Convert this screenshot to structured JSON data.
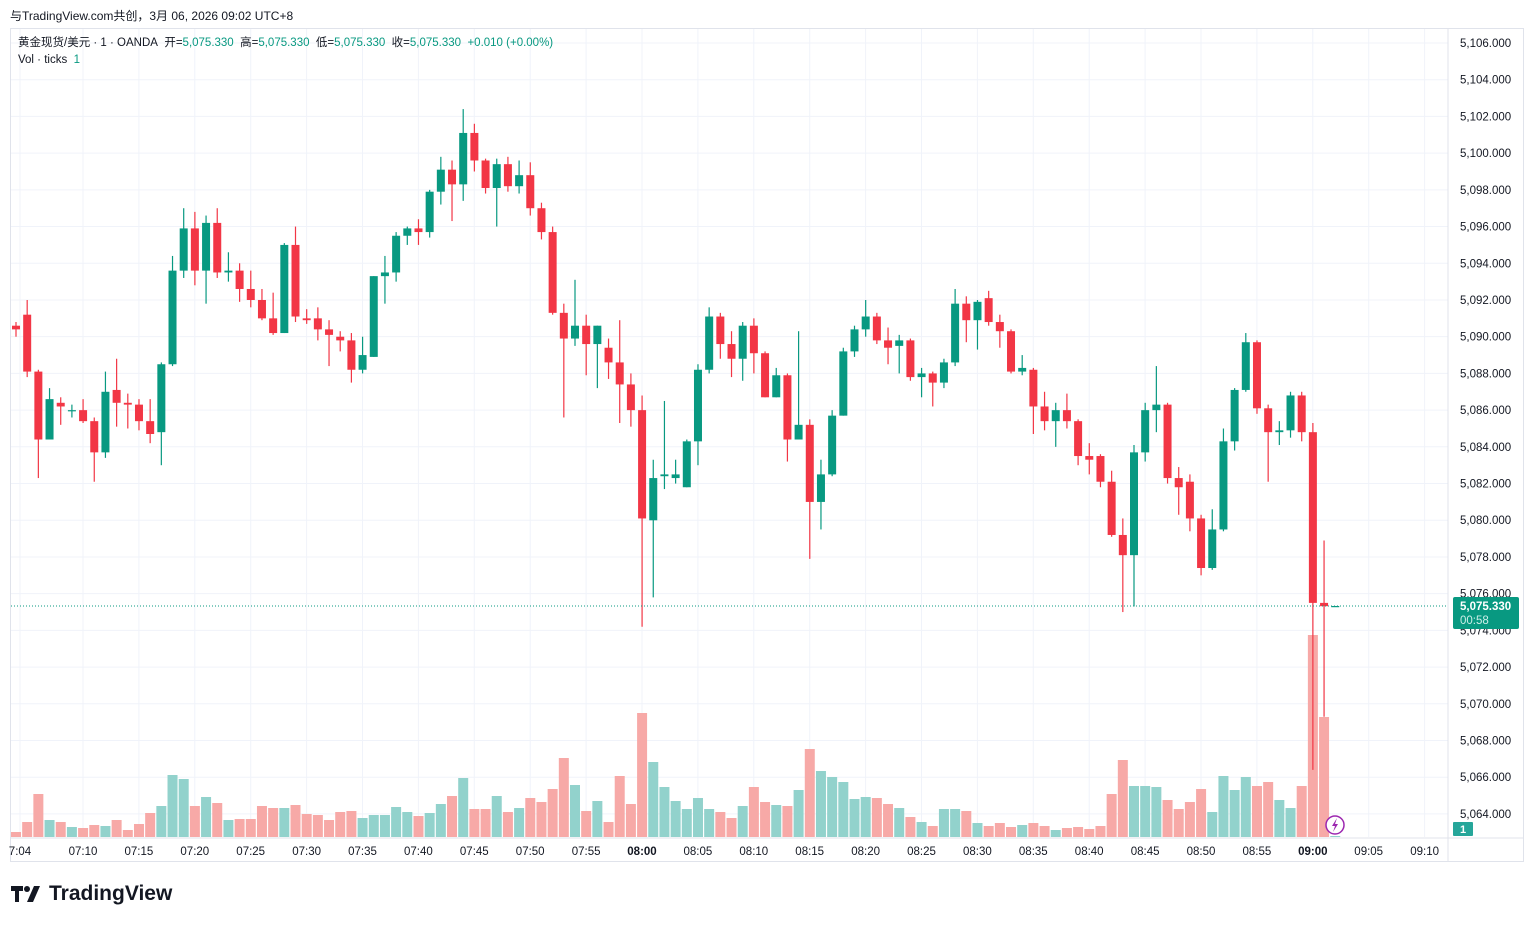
{
  "top_note": "与TradingView.com共创，3月 06, 2026 09:02 UTC+8",
  "legend": {
    "symbol": "黄金现货/美元 · 1 · OANDA",
    "open_label": "开=",
    "open": "5,075.330",
    "high_label": "高=",
    "high": "5,075.330",
    "low_label": "低=",
    "low": "5,075.330",
    "close_label": "收=",
    "close": "5,075.330",
    "change": "+0.010 (+0.00%)",
    "vol_label": "Vol · ticks",
    "vol_value": "1"
  },
  "price_badge": {
    "price": "5,075.330",
    "countdown": "00:58"
  },
  "volume_badge": "1",
  "logo_text": "TradingView",
  "colors": {
    "up": "#089981",
    "down": "#F23645",
    "vol_up": "#92D2CC",
    "vol_down": "#F7A9A7"
  },
  "chart_data": {
    "type": "candlestick",
    "interval": "1",
    "ylim": [
      5063.5,
      5106.5
    ],
    "price_ticks": [
      "5,106.000",
      "5,104.000",
      "5,102.000",
      "5,100.000",
      "5,098.000",
      "5,096.000",
      "5,094.000",
      "5,092.000",
      "5,090.000",
      "5,088.000",
      "5,086.000",
      "5,084.000",
      "5,082.000",
      "5,080.000",
      "5,078.000",
      "5,076.000",
      "5,074.000",
      "5,072.000",
      "5,070.000",
      "5,068.000",
      "5,066.000",
      "5,064.000"
    ],
    "time_ticks": [
      "7:04",
      "07:10",
      "07:15",
      "07:20",
      "07:25",
      "07:30",
      "07:35",
      "07:40",
      "07:45",
      "07:50",
      "07:55",
      "08:00",
      "08:05",
      "08:10",
      "08:15",
      "08:20",
      "08:25",
      "08:30",
      "08:35",
      "08:40",
      "08:45",
      "08:50",
      "08:55",
      "09:00",
      "09:05",
      "09:10"
    ],
    "columns": [
      "time",
      "open",
      "high",
      "low",
      "close",
      "volume"
    ],
    "candles": [
      [
        "07:04",
        5090.6,
        5090.8,
        5090.0,
        5090.4,
        5
      ],
      [
        "07:05",
        5091.2,
        5092.0,
        5087.8,
        5088.1,
        15
      ],
      [
        "07:06",
        5088.1,
        5088.2,
        5082.3,
        5084.4,
        43
      ],
      [
        "07:07",
        5084.4,
        5087.2,
        5084.4,
        5086.6,
        17
      ],
      [
        "07:08",
        5086.4,
        5086.7,
        5085.2,
        5086.2,
        15
      ],
      [
        "07:09",
        5086.0,
        5086.3,
        5085.6,
        5086.0,
        10
      ],
      [
        "07:10",
        5086.0,
        5086.6,
        5085.3,
        5085.4,
        9
      ],
      [
        "07:11",
        5085.4,
        5085.6,
        5082.1,
        5083.7,
        12
      ],
      [
        "07:12",
        5083.7,
        5088.1,
        5083.4,
        5087.0,
        11
      ],
      [
        "07:13",
        5087.1,
        5088.8,
        5085.1,
        5086.4,
        17
      ],
      [
        "07:14",
        5086.4,
        5086.9,
        5085.0,
        5086.3,
        7
      ],
      [
        "07:15",
        5086.3,
        5086.6,
        5084.9,
        5085.4,
        13
      ],
      [
        "07:16",
        5085.4,
        5086.6,
        5084.2,
        5084.7,
        24
      ],
      [
        "07:17",
        5084.8,
        5088.6,
        5083.0,
        5088.5,
        31
      ],
      [
        "07:18",
        5088.5,
        5094.4,
        5088.4,
        5093.6,
        62
      ],
      [
        "07:19",
        5093.6,
        5097.0,
        5093.2,
        5095.9,
        58
      ],
      [
        "07:20",
        5095.9,
        5096.8,
        5092.8,
        5093.6,
        31
      ],
      [
        "07:21",
        5093.6,
        5096.6,
        5091.8,
        5096.2,
        40
      ],
      [
        "07:22",
        5096.2,
        5097.0,
        5093.2,
        5093.5,
        34
      ],
      [
        "07:23",
        5093.5,
        5094.6,
        5093.0,
        5093.6,
        17
      ],
      [
        "07:24",
        5093.6,
        5094.0,
        5091.9,
        5092.6,
        18
      ],
      [
        "07:25",
        5092.6,
        5093.6,
        5091.6,
        5092.0,
        18
      ],
      [
        "07:26",
        5092.0,
        5092.6,
        5090.9,
        5091.0,
        31
      ],
      [
        "07:27",
        5091.0,
        5092.4,
        5090.1,
        5090.2,
        29
      ],
      [
        "07:28",
        5090.2,
        5095.1,
        5090.2,
        5095.0,
        29
      ],
      [
        "07:29",
        5095.0,
        5096.0,
        5090.8,
        5091.1,
        32
      ],
      [
        "07:30",
        5091.0,
        5091.5,
        5090.7,
        5090.9,
        23
      ],
      [
        "07:31",
        5091.0,
        5091.6,
        5089.8,
        5090.4,
        22
      ],
      [
        "07:32",
        5090.4,
        5090.9,
        5088.4,
        5090.1,
        17
      ],
      [
        "07:33",
        5090.0,
        5090.3,
        5089.2,
        5089.8,
        25
      ],
      [
        "07:34",
        5089.8,
        5090.2,
        5087.5,
        5088.2,
        26
      ],
      [
        "07:35",
        5088.2,
        5090.0,
        5088.0,
        5089.0,
        19
      ],
      [
        "07:36",
        5088.9,
        5093.3,
        5088.9,
        5093.3,
        22
      ],
      [
        "07:37",
        5093.3,
        5094.4,
        5091.8,
        5093.5,
        22
      ],
      [
        "07:38",
        5093.5,
        5095.7,
        5093.0,
        5095.5,
        30
      ],
      [
        "07:39",
        5095.5,
        5096.0,
        5095.0,
        5095.9,
        25
      ],
      [
        "07:40",
        5095.9,
        5096.4,
        5095.0,
        5095.7,
        21
      ],
      [
        "07:41",
        5095.7,
        5098.0,
        5095.4,
        5097.9,
        24
      ],
      [
        "07:42",
        5097.9,
        5099.8,
        5097.2,
        5099.1,
        33
      ],
      [
        "07:43",
        5099.1,
        5099.6,
        5096.3,
        5098.3,
        41
      ],
      [
        "07:44",
        5098.3,
        5102.4,
        5097.4,
        5101.1,
        59
      ],
      [
        "07:45",
        5101.1,
        5101.6,
        5099.0,
        5099.6,
        28
      ],
      [
        "07:46",
        5099.6,
        5099.7,
        5097.8,
        5098.1,
        28
      ],
      [
        "07:47",
        5098.1,
        5099.7,
        5096.0,
        5099.4,
        41
      ],
      [
        "07:48",
        5099.4,
        5099.8,
        5097.9,
        5098.2,
        25
      ],
      [
        "07:49",
        5098.2,
        5099.6,
        5097.8,
        5098.8,
        29
      ],
      [
        "07:50",
        5098.8,
        5099.5,
        5096.6,
        5097.0,
        39
      ],
      [
        "07:51",
        5097.0,
        5097.3,
        5095.3,
        5095.7,
        35
      ],
      [
        "07:52",
        5095.7,
        5096.0,
        5091.2,
        5091.3,
        48
      ],
      [
        "07:53",
        5091.3,
        5091.8,
        5085.6,
        5089.9,
        79
      ],
      [
        "07:54",
        5089.9,
        5093.1,
        5089.5,
        5090.6,
        52
      ],
      [
        "07:55",
        5090.6,
        5091.2,
        5087.9,
        5089.6,
        26
      ],
      [
        "07:56",
        5089.6,
        5090.6,
        5087.2,
        5090.6,
        36
      ],
      [
        "07:57",
        5089.4,
        5089.9,
        5087.7,
        5088.6,
        15
      ],
      [
        "07:58",
        5088.6,
        5090.9,
        5085.3,
        5087.4,
        61
      ],
      [
        "07:59",
        5087.4,
        5088.0,
        5085.1,
        5086.0,
        33
      ],
      [
        "08:00",
        5086.0,
        5086.8,
        5074.2,
        5080.1,
        124
      ],
      [
        "08:01",
        5080.0,
        5083.3,
        5075.8,
        5082.3,
        75
      ],
      [
        "08:02",
        5082.4,
        5086.5,
        5081.7,
        5082.5,
        50
      ],
      [
        "08:03",
        5082.3,
        5083.3,
        5082.0,
        5082.5,
        36
      ],
      [
        "08:04",
        5081.8,
        5084.4,
        5081.8,
        5084.3,
        28
      ],
      [
        "08:05",
        5084.3,
        5088.5,
        5083.0,
        5088.2,
        39
      ],
      [
        "08:06",
        5088.2,
        5091.6,
        5088.0,
        5091.1,
        28
      ],
      [
        "08:07",
        5091.1,
        5091.3,
        5088.8,
        5089.6,
        25
      ],
      [
        "08:08",
        5089.6,
        5090.3,
        5087.8,
        5088.8,
        19
      ],
      [
        "08:09",
        5088.8,
        5090.8,
        5087.6,
        5090.6,
        31
      ],
      [
        "08:10",
        5090.6,
        5091.0,
        5088.0,
        5089.1,
        50
      ],
      [
        "08:11",
        5089.1,
        5089.2,
        5086.7,
        5086.7,
        35
      ],
      [
        "08:12",
        5086.7,
        5088.3,
        5086.7,
        5087.9,
        32
      ],
      [
        "08:13",
        5087.9,
        5088.0,
        5083.2,
        5084.4,
        31
      ],
      [
        "08:14",
        5084.4,
        5090.3,
        5084.4,
        5085.2,
        47
      ],
      [
        "08:15",
        5085.2,
        5085.5,
        5077.9,
        5081.0,
        88
      ],
      [
        "08:16",
        5081.0,
        5083.3,
        5079.5,
        5082.5,
        66
      ],
      [
        "08:17",
        5082.5,
        5086.0,
        5082.4,
        5085.7,
        60
      ],
      [
        "08:18",
        5085.7,
        5089.4,
        5085.7,
        5089.2,
        55
      ],
      [
        "08:19",
        5089.2,
        5090.6,
        5088.9,
        5090.4,
        38
      ],
      [
        "08:20",
        5090.4,
        5092.0,
        5090.0,
        5091.1,
        40
      ],
      [
        "08:21",
        5091.1,
        5091.3,
        5089.6,
        5089.8,
        39
      ],
      [
        "08:22",
        5089.8,
        5090.5,
        5088.5,
        5089.4,
        33
      ],
      [
        "08:23",
        5089.5,
        5090.1,
        5088.0,
        5089.8,
        29
      ],
      [
        "08:24",
        5089.8,
        5089.9,
        5087.6,
        5087.8,
        20
      ],
      [
        "08:25",
        5087.8,
        5088.3,
        5086.7,
        5088.0,
        15
      ],
      [
        "08:26",
        5088.0,
        5088.1,
        5086.2,
        5087.5,
        11
      ],
      [
        "08:27",
        5087.5,
        5088.8,
        5087.2,
        5088.6,
        28
      ],
      [
        "08:28",
        5088.6,
        5092.6,
        5088.4,
        5091.8,
        28
      ],
      [
        "08:29",
        5091.8,
        5092.2,
        5089.7,
        5090.9,
        26
      ],
      [
        "08:30",
        5090.9,
        5092.0,
        5089.3,
        5091.9,
        14
      ],
      [
        "08:31",
        5092.1,
        5092.5,
        5090.6,
        5090.8,
        11
      ],
      [
        "08:32",
        5090.8,
        5091.2,
        5089.4,
        5090.3,
        14
      ],
      [
        "08:33",
        5090.3,
        5090.4,
        5088.0,
        5088.1,
        10
      ],
      [
        "08:34",
        5088.1,
        5089.0,
        5087.9,
        5088.3,
        12
      ],
      [
        "08:35",
        5088.2,
        5088.3,
        5084.7,
        5086.2,
        14
      ],
      [
        "08:36",
        5086.2,
        5087.0,
        5084.9,
        5085.4,
        11
      ],
      [
        "08:37",
        5085.4,
        5086.4,
        5084.0,
        5086.0,
        7
      ],
      [
        "08:38",
        5086.0,
        5086.9,
        5085.0,
        5085.4,
        9
      ],
      [
        "08:39",
        5085.4,
        5085.5,
        5083.0,
        5083.5,
        10
      ],
      [
        "08:40",
        5083.5,
        5084.2,
        5082.5,
        5083.3,
        8
      ],
      [
        "08:41",
        5083.5,
        5083.6,
        5081.8,
        5082.1,
        11
      ],
      [
        "08:42",
        5082.1,
        5082.7,
        5079.1,
        5079.2,
        43
      ],
      [
        "08:43",
        5079.2,
        5080.1,
        5075.0,
        5078.1,
        77
      ],
      [
        "08:44",
        5078.1,
        5084.1,
        5075.3,
        5083.7,
        51
      ],
      [
        "08:45",
        5083.7,
        5086.4,
        5083.2,
        5086.0,
        51
      ],
      [
        "08:46",
        5086.0,
        5088.4,
        5084.8,
        5086.3,
        50
      ],
      [
        "08:47",
        5086.3,
        5086.4,
        5082.0,
        5082.3,
        37
      ],
      [
        "08:48",
        5082.3,
        5082.9,
        5080.3,
        5081.8,
        28
      ],
      [
        "08:49",
        5082.1,
        5082.5,
        5079.4,
        5080.1,
        35
      ],
      [
        "08:50",
        5080.1,
        5080.3,
        5077.0,
        5077.4,
        48
      ],
      [
        "08:51",
        5077.4,
        5080.6,
        5077.3,
        5079.5,
        25
      ],
      [
        "08:52",
        5079.5,
        5085.0,
        5079.4,
        5084.3,
        61
      ],
      [
        "08:53",
        5084.3,
        5087.2,
        5083.8,
        5087.1,
        47
      ],
      [
        "08:54",
        5087.1,
        5090.2,
        5087.0,
        5089.7,
        60
      ],
      [
        "08:55",
        5089.7,
        5089.8,
        5085.8,
        5086.1,
        51
      ],
      [
        "08:56",
        5086.1,
        5086.3,
        5082.1,
        5084.8,
        55
      ],
      [
        "08:57",
        5084.8,
        5085.4,
        5084.1,
        5084.9,
        37
      ],
      [
        "08:58",
        5084.9,
        5087.0,
        5084.5,
        5086.8,
        29
      ],
      [
        "08:59",
        5086.8,
        5087.0,
        5084.3,
        5084.8,
        51
      ],
      [
        "09:00",
        5084.8,
        5085.3,
        5066.4,
        5075.5,
        202
      ],
      [
        "09:01",
        5075.5,
        5078.9,
        5069.3,
        5075.32,
        120
      ],
      [
        "09:02",
        5075.33,
        5075.33,
        5075.33,
        5075.33,
        1
      ]
    ]
  }
}
